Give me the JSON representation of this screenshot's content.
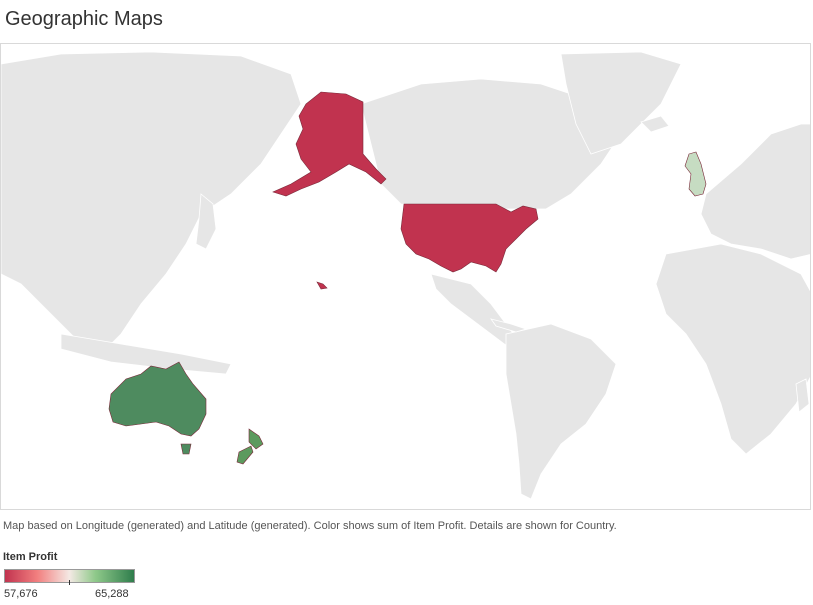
{
  "title": "Geographic Maps",
  "caption": "Map based on Longitude (generated) and Latitude (generated).  Color shows sum of Item Profit.  Details are shown for Country.",
  "legend": {
    "title": "Item Profit",
    "min_label": "57,676",
    "max_label": "65,288",
    "min_value": 57676,
    "max_value": 65288,
    "colors": [
      "#c1334f",
      "#f27f7f",
      "#f4e9e4",
      "#8fc98a",
      "#2f7d4c"
    ]
  },
  "map": {
    "countries": [
      {
        "name": "United States",
        "color": "#c1334f"
      },
      {
        "name": "Australia",
        "color": "#4e8b5f"
      },
      {
        "name": "New Zealand",
        "color": "#5c9a5e"
      },
      {
        "name": "United Kingdom",
        "color": "#c6dcc2"
      }
    ],
    "land_color": "#e6e6e6"
  }
}
